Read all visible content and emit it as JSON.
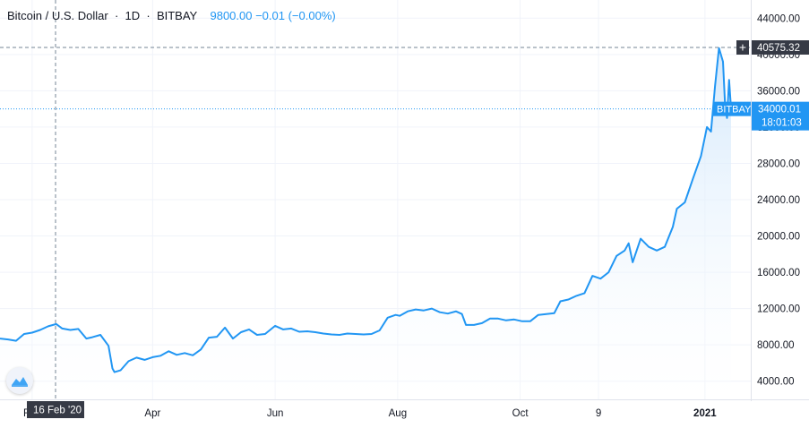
{
  "legend": {
    "title": "Bitcoin / U.S. Dollar",
    "interval": "1D",
    "exchange": "BITBAY",
    "values": "9800.00 −0.01 (−0.00%)"
  },
  "crosshair": {
    "price_label": "40575.32",
    "date_label": "16 Feb '20",
    "plus_symbol": "+"
  },
  "last_price": {
    "exchange_tag": "BITBAY",
    "price": "34000.01",
    "countdown": "18:01:03"
  },
  "colors": {
    "line": "#2196f3",
    "area_top": "#cfe6fb",
    "area_bottom": "#ffffff",
    "axis_text": "#131722",
    "grid": "#f0f3fa",
    "price_tag_bg": "#2196f3",
    "crosshair_tag_bg": "#363a45"
  },
  "chart_data": {
    "type": "area",
    "title": "Bitcoin / U.S. Dollar",
    "ylim": [
      2000,
      46000
    ],
    "y_ticks": [
      4000,
      8000,
      12000,
      16000,
      20000,
      24000,
      28000,
      32000,
      36000,
      40000,
      44000
    ],
    "y_tick_labels": [
      "4000.00",
      "8000.00",
      "12000.00",
      "16000.00",
      "20000.00",
      "24000.00",
      "28000.00",
      "32000.00",
      "36000.00",
      "40000.00",
      "44000.00"
    ],
    "x_range": [
      "2020-01-16",
      "2021-01-14"
    ],
    "x_ticks": [
      {
        "date": "2020-02-01",
        "label": "Feb"
      },
      {
        "date": "2020-04-01",
        "label": "Apr"
      },
      {
        "date": "2020-06-01",
        "label": "Jun"
      },
      {
        "date": "2020-08-01",
        "label": "Aug"
      },
      {
        "date": "2020-10-01",
        "label": "Oct"
      },
      {
        "date": "2020-11-09",
        "label": "9"
      },
      {
        "date": "2021-01-01",
        "label": "2021"
      }
    ],
    "series": [
      {
        "points": [
          [
            "2020-01-16",
            8700
          ],
          [
            "2020-01-20",
            8600
          ],
          [
            "2020-01-24",
            8450
          ],
          [
            "2020-01-28",
            9200
          ],
          [
            "2020-02-01",
            9350
          ],
          [
            "2020-02-05",
            9650
          ],
          [
            "2020-02-09",
            10050
          ],
          [
            "2020-02-13",
            10300
          ],
          [
            "2020-02-16",
            9800
          ],
          [
            "2020-02-20",
            9650
          ],
          [
            "2020-02-24",
            9750
          ],
          [
            "2020-02-28",
            8700
          ],
          [
            "2020-03-02",
            8850
          ],
          [
            "2020-03-06",
            9100
          ],
          [
            "2020-03-10",
            7900
          ],
          [
            "2020-03-12",
            5400
          ],
          [
            "2020-03-13",
            5000
          ],
          [
            "2020-03-16",
            5200
          ],
          [
            "2020-03-20",
            6200
          ],
          [
            "2020-03-24",
            6600
          ],
          [
            "2020-03-28",
            6350
          ],
          [
            "2020-04-01",
            6650
          ],
          [
            "2020-04-05",
            6800
          ],
          [
            "2020-04-09",
            7300
          ],
          [
            "2020-04-13",
            6900
          ],
          [
            "2020-04-17",
            7100
          ],
          [
            "2020-04-21",
            6850
          ],
          [
            "2020-04-25",
            7500
          ],
          [
            "2020-04-29",
            8800
          ],
          [
            "2020-05-03",
            8900
          ],
          [
            "2020-05-07",
            9900
          ],
          [
            "2020-05-11",
            8700
          ],
          [
            "2020-05-15",
            9400
          ],
          [
            "2020-05-19",
            9700
          ],
          [
            "2020-05-23",
            9100
          ],
          [
            "2020-05-27",
            9200
          ],
          [
            "2020-06-01",
            10100
          ],
          [
            "2020-06-05",
            9700
          ],
          [
            "2020-06-09",
            9800
          ],
          [
            "2020-06-13",
            9450
          ],
          [
            "2020-06-17",
            9500
          ],
          [
            "2020-06-21",
            9400
          ],
          [
            "2020-06-25",
            9250
          ],
          [
            "2020-06-29",
            9150
          ],
          [
            "2020-07-03",
            9100
          ],
          [
            "2020-07-07",
            9250
          ],
          [
            "2020-07-11",
            9200
          ],
          [
            "2020-07-15",
            9150
          ],
          [
            "2020-07-19",
            9200
          ],
          [
            "2020-07-23",
            9600
          ],
          [
            "2020-07-27",
            11000
          ],
          [
            "2020-07-31",
            11300
          ],
          [
            "2020-08-02",
            11200
          ],
          [
            "2020-08-06",
            11700
          ],
          [
            "2020-08-10",
            11900
          ],
          [
            "2020-08-14",
            11800
          ],
          [
            "2020-08-18",
            12000
          ],
          [
            "2020-08-22",
            11600
          ],
          [
            "2020-08-26",
            11450
          ],
          [
            "2020-08-30",
            11700
          ],
          [
            "2020-09-02",
            11400
          ],
          [
            "2020-09-04",
            10200
          ],
          [
            "2020-09-08",
            10200
          ],
          [
            "2020-09-12",
            10400
          ],
          [
            "2020-09-16",
            10900
          ],
          [
            "2020-09-20",
            10900
          ],
          [
            "2020-09-24",
            10700
          ],
          [
            "2020-09-28",
            10800
          ],
          [
            "2020-10-02",
            10600
          ],
          [
            "2020-10-06",
            10600
          ],
          [
            "2020-10-10",
            11300
          ],
          [
            "2020-10-14",
            11400
          ],
          [
            "2020-10-18",
            11500
          ],
          [
            "2020-10-21",
            12800
          ],
          [
            "2020-10-25",
            13000
          ],
          [
            "2020-10-29",
            13400
          ],
          [
            "2020-11-02",
            13700
          ],
          [
            "2020-11-06",
            15600
          ],
          [
            "2020-11-10",
            15300
          ],
          [
            "2020-11-14",
            16000
          ],
          [
            "2020-11-18",
            17800
          ],
          [
            "2020-11-22",
            18400
          ],
          [
            "2020-11-24",
            19200
          ],
          [
            "2020-11-26",
            17100
          ],
          [
            "2020-11-30",
            19700
          ],
          [
            "2020-12-04",
            18800
          ],
          [
            "2020-12-08",
            18400
          ],
          [
            "2020-12-12",
            18800
          ],
          [
            "2020-12-16",
            21000
          ],
          [
            "2020-12-18",
            23000
          ],
          [
            "2020-12-22",
            23700
          ],
          [
            "2020-12-26",
            26300
          ],
          [
            "2020-12-30",
            28800
          ],
          [
            "2021-01-02",
            32000
          ],
          [
            "2021-01-04",
            31500
          ],
          [
            "2021-01-06",
            36500
          ],
          [
            "2021-01-08",
            40700
          ],
          [
            "2021-01-10",
            39200
          ],
          [
            "2021-01-11",
            34500
          ],
          [
            "2021-01-12",
            33000
          ],
          [
            "2021-01-13",
            37200
          ],
          [
            "2021-01-14",
            34000
          ]
        ]
      }
    ]
  }
}
